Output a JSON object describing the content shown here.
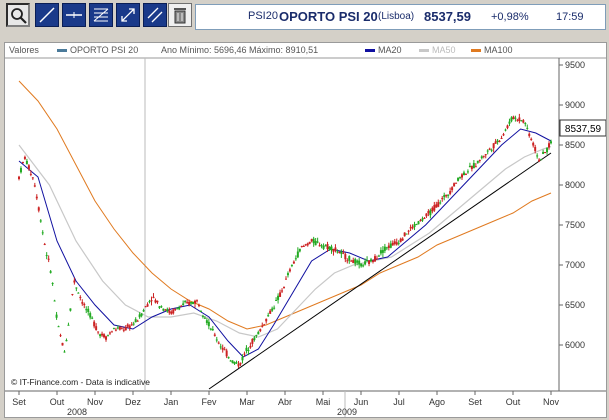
{
  "toolbar": {
    "tools": [
      {
        "name": "zoom-tool",
        "icon": "magnifier-icon"
      },
      {
        "name": "line-tool",
        "icon": "line-icon"
      },
      {
        "name": "horizontal-line-tool",
        "icon": "horizontal-line-icon"
      },
      {
        "name": "fibonacci-tool",
        "icon": "fibonacci-icon"
      },
      {
        "name": "arrows-tool",
        "icon": "arrows-icon"
      },
      {
        "name": "parallel-lines-tool",
        "icon": "parallel-lines-icon"
      },
      {
        "name": "delete-tool",
        "icon": "trash-icon"
      }
    ]
  },
  "quote": {
    "symbol": "PSI20",
    "name": "OPORTO PSI 20",
    "exchange": "(Lisboa)",
    "last": "8537,59",
    "change": "+0,98%",
    "time": "17:59"
  },
  "legend": {
    "label": "Valores",
    "series_name": "OPORTO PSI 20",
    "range_text": "Ano Mínimo: 5696,46 Máximo: 8910,51",
    "ma20": "MA20",
    "ma50": "MA50",
    "ma100": "MA100"
  },
  "copyright": "© IT-Finance.com - Data is indicative",
  "current_value_label": "8537,59",
  "colors": {
    "up": "#22aa22",
    "down": "#cc2222",
    "ma20": "#1010a0",
    "ma50": "#c8c8c8",
    "ma100": "#e07a20",
    "trendline": "#000000",
    "toolbar_dark": "#1a3a8a"
  },
  "chart_data": {
    "type": "line",
    "y_ticks": [
      "9500",
      "9000",
      "8500",
      "8000",
      "7500",
      "7000",
      "6500",
      "6000"
    ],
    "ylim": [
      5450,
      9500
    ],
    "x_months": [
      "Set",
      "Out",
      "Nov",
      "Dez",
      "Jan",
      "Fev",
      "Mar",
      "Abr",
      "Mai",
      "Jun",
      "Jul",
      "Ago",
      "Set",
      "Out",
      "Nov"
    ],
    "years": [
      "2008",
      "2009"
    ],
    "grid": false,
    "series": [
      {
        "name": "OPORTO PSI 20",
        "anchors": [
          [
            0,
            8100
          ],
          [
            0.15,
            8350
          ],
          [
            0.4,
            8050
          ],
          [
            0.7,
            7200
          ],
          [
            0.85,
            6900
          ],
          [
            1.0,
            6300
          ],
          [
            1.2,
            5900
          ],
          [
            1.45,
            6800
          ],
          [
            1.7,
            6500
          ],
          [
            1.9,
            6350
          ],
          [
            2.1,
            6150
          ],
          [
            2.3,
            6100
          ],
          [
            2.5,
            6200
          ],
          [
            2.8,
            6200
          ],
          [
            3.1,
            6300
          ],
          [
            3.3,
            6450
          ],
          [
            3.5,
            6600
          ],
          [
            3.7,
            6500
          ],
          [
            4.0,
            6400
          ],
          [
            4.3,
            6500
          ],
          [
            4.7,
            6550
          ],
          [
            5.0,
            6250
          ],
          [
            5.3,
            6000
          ],
          [
            5.6,
            5800
          ],
          [
            5.8,
            5750
          ],
          [
            6.0,
            5950
          ],
          [
            6.3,
            6150
          ],
          [
            6.6,
            6400
          ],
          [
            6.9,
            6650
          ],
          [
            7.1,
            6900
          ],
          [
            7.4,
            7200
          ],
          [
            7.7,
            7300
          ],
          [
            8.0,
            7250
          ],
          [
            8.3,
            7200
          ],
          [
            8.6,
            7100
          ],
          [
            9.0,
            7000
          ],
          [
            9.3,
            7050
          ],
          [
            9.6,
            7200
          ],
          [
            10.0,
            7300
          ],
          [
            10.3,
            7450
          ],
          [
            10.7,
            7600
          ],
          [
            11.0,
            7750
          ],
          [
            11.3,
            7900
          ],
          [
            11.6,
            8100
          ],
          [
            12.0,
            8250
          ],
          [
            12.3,
            8400
          ],
          [
            12.7,
            8600
          ],
          [
            13.0,
            8850
          ],
          [
            13.3,
            8800
          ],
          [
            13.5,
            8550
          ],
          [
            13.7,
            8300
          ],
          [
            13.9,
            8450
          ],
          [
            14.0,
            8537.59
          ]
        ]
      },
      {
        "name": "MA20",
        "anchors": [
          [
            0,
            8300
          ],
          [
            0.5,
            8100
          ],
          [
            1.0,
            7300
          ],
          [
            1.5,
            6800
          ],
          [
            2.0,
            6500
          ],
          [
            2.5,
            6250
          ],
          [
            3.0,
            6200
          ],
          [
            3.5,
            6350
          ],
          [
            4.0,
            6450
          ],
          [
            4.5,
            6500
          ],
          [
            5.0,
            6350
          ],
          [
            5.5,
            6050
          ],
          [
            5.9,
            5850
          ],
          [
            6.3,
            5950
          ],
          [
            6.7,
            6250
          ],
          [
            7.2,
            6650
          ],
          [
            7.7,
            7050
          ],
          [
            8.2,
            7200
          ],
          [
            8.7,
            7150
          ],
          [
            9.2,
            7050
          ],
          [
            9.7,
            7100
          ],
          [
            10.2,
            7300
          ],
          [
            10.7,
            7500
          ],
          [
            11.2,
            7750
          ],
          [
            11.7,
            8000
          ],
          [
            12.2,
            8250
          ],
          [
            12.7,
            8500
          ],
          [
            13.2,
            8700
          ],
          [
            13.6,
            8650
          ],
          [
            14.0,
            8550
          ]
        ]
      },
      {
        "name": "MA50",
        "anchors": [
          [
            0,
            8500
          ],
          [
            0.8,
            8000
          ],
          [
            1.5,
            7300
          ],
          [
            2.2,
            6800
          ],
          [
            2.8,
            6500
          ],
          [
            3.4,
            6350
          ],
          [
            4.0,
            6350
          ],
          [
            4.6,
            6400
          ],
          [
            5.2,
            6300
          ],
          [
            5.8,
            6150
          ],
          [
            6.3,
            6100
          ],
          [
            6.8,
            6200
          ],
          [
            7.3,
            6450
          ],
          [
            7.8,
            6700
          ],
          [
            8.3,
            6900
          ],
          [
            8.8,
            7000
          ],
          [
            9.3,
            7050
          ],
          [
            9.8,
            7100
          ],
          [
            10.3,
            7250
          ],
          [
            10.8,
            7400
          ],
          [
            11.3,
            7600
          ],
          [
            11.8,
            7800
          ],
          [
            12.3,
            8000
          ],
          [
            12.8,
            8200
          ],
          [
            13.3,
            8350
          ],
          [
            13.8,
            8450
          ],
          [
            14.0,
            8480
          ]
        ]
      },
      {
        "name": "MA100",
        "anchors": [
          [
            0,
            9300
          ],
          [
            0.5,
            9050
          ],
          [
            1.0,
            8700
          ],
          [
            1.5,
            8250
          ],
          [
            2.0,
            7800
          ],
          [
            2.5,
            7450
          ],
          [
            3.0,
            7150
          ],
          [
            3.5,
            6900
          ],
          [
            4.0,
            6700
          ],
          [
            4.5,
            6550
          ],
          [
            5.0,
            6450
          ],
          [
            5.5,
            6300
          ],
          [
            6.0,
            6200
          ],
          [
            6.5,
            6250
          ],
          [
            7.0,
            6350
          ],
          [
            7.5,
            6450
          ],
          [
            8.0,
            6550
          ],
          [
            8.5,
            6650
          ],
          [
            9.0,
            6750
          ],
          [
            9.5,
            6900
          ],
          [
            10.0,
            7000
          ],
          [
            10.5,
            7100
          ],
          [
            11.0,
            7250
          ],
          [
            11.5,
            7350
          ],
          [
            12.0,
            7450
          ],
          [
            12.5,
            7550
          ],
          [
            13.0,
            7650
          ],
          [
            13.5,
            7800
          ],
          [
            14.0,
            7900
          ]
        ]
      },
      {
        "name": "Trendline",
        "anchors": [
          [
            5.0,
            5450
          ],
          [
            14.0,
            8400
          ]
        ]
      }
    ]
  }
}
